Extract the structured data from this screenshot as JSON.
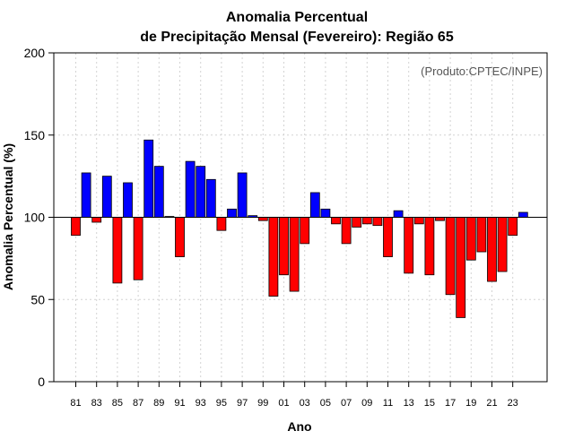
{
  "chart_data": {
    "type": "bar",
    "title_line1": "Anomalia Percentual",
    "title_line2": "de Precipitação Mensal (Fevereiro): Região 65",
    "credit": "(Produto:CPTEC/INPE)",
    "xlabel": "Ano",
    "ylabel": "Anomalia Percentual (%)",
    "ylim": [
      0,
      200
    ],
    "yticks": [
      "0",
      "50",
      "100",
      "150",
      "200"
    ],
    "baseline": 100,
    "grid": true,
    "colors": {
      "above": "#0000ff",
      "below": "#ff0000",
      "edge": "#000000",
      "grid": "#d3d3d3"
    },
    "categories": [
      "81",
      "82",
      "83",
      "84",
      "85",
      "86",
      "87",
      "88",
      "89",
      "90",
      "91",
      "92",
      "93",
      "94",
      "95",
      "96",
      "97",
      "98",
      "99",
      "00",
      "01",
      "02",
      "03",
      "04",
      "05",
      "06",
      "07",
      "08",
      "09",
      "10",
      "11",
      "12",
      "13",
      "14",
      "15",
      "16",
      "17",
      "18",
      "19",
      "20",
      "21",
      "22",
      "23",
      "24"
    ],
    "xtick_labels": [
      "81",
      "83",
      "85",
      "87",
      "89",
      "91",
      "93",
      "95",
      "97",
      "99",
      "01",
      "03",
      "05",
      "07",
      "09",
      "11",
      "13",
      "15",
      "17",
      "19",
      "21",
      "23"
    ],
    "values": [
      89,
      127,
      97,
      125,
      60,
      121,
      62,
      147,
      131,
      100.5,
      76,
      134,
      131,
      123,
      92,
      105,
      127,
      101,
      98,
      52,
      65,
      55,
      84,
      115,
      105,
      96,
      84,
      94,
      96,
      95,
      76,
      104,
      66,
      96,
      65,
      98,
      53,
      39,
      74,
      79,
      61,
      67,
      89,
      103
    ]
  }
}
